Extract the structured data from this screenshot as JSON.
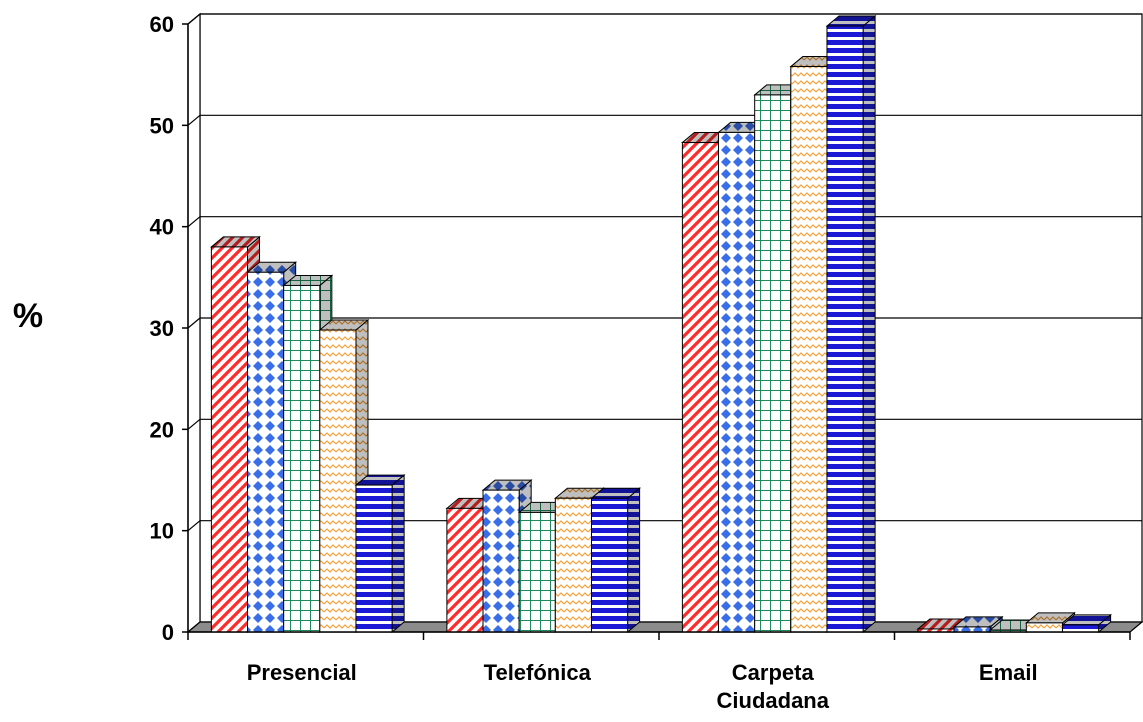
{
  "chart_data": {
    "type": "bar",
    "title": "",
    "xlabel": "",
    "ylabel": "%",
    "ylim": [
      0,
      60
    ],
    "yticks": [
      0,
      10,
      20,
      30,
      40,
      50,
      60
    ],
    "grid": true,
    "categories": [
      "Presencial",
      "Telefónica",
      "Carpeta Ciudadana",
      "Email"
    ],
    "category_lines": [
      [
        "Presencial"
      ],
      [
        "Telefónica"
      ],
      [
        "Carpeta",
        "Ciudadana"
      ],
      [
        "Email"
      ]
    ],
    "series": [
      {
        "values": [
          38,
          12.2,
          48.3,
          0.3
        ],
        "color": "#ff2a2a",
        "pattern": "diagonal-stripes"
      },
      {
        "values": [
          35.5,
          14,
          49.3,
          0.5
        ],
        "color": "#3a6ee8",
        "pattern": "diamonds"
      },
      {
        "values": [
          34.2,
          11.8,
          53,
          0.2
        ],
        "color": "#1f8a5c",
        "pattern": "grid"
      },
      {
        "values": [
          29.8,
          13.2,
          55.8,
          0.9
        ],
        "color": "#f5a23a",
        "pattern": "waves"
      },
      {
        "values": [
          14.5,
          13.2,
          59.8,
          0.7
        ],
        "color": "#1a1ad6",
        "pattern": "horizontal-stripes"
      }
    ]
  }
}
